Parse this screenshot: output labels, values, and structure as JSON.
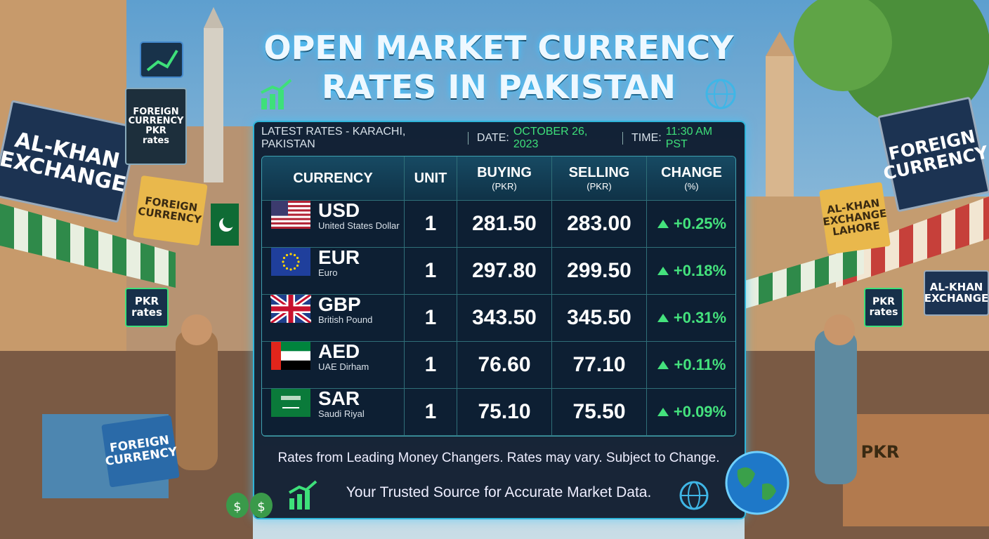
{
  "header": {
    "title": [
      "OPEN MARKET CURRENCY",
      "RATES IN PAKISTAN"
    ]
  },
  "info_bar": {
    "location": "LATEST RATES - KARACHI, PAKISTAN",
    "date_label": "DATE:",
    "date": "OCTOBER 26, 2023",
    "time_label": "TIME:",
    "time": "11:30 AM PST"
  },
  "table": {
    "columns": [
      {
        "label": "CURRENCY"
      },
      {
        "label": "UNIT"
      },
      {
        "label": "BUYING",
        "unit": "(PKR)"
      },
      {
        "label": "SELLING",
        "unit": "(PKR)"
      },
      {
        "label": "CHANGE",
        "unit": "(%)"
      }
    ],
    "rows": [
      {
        "code": "USD",
        "name": "United States Dollar",
        "unit": 1,
        "buying": "281.50",
        "selling": "283.00",
        "change": "+0.25%"
      },
      {
        "code": "EUR",
        "name": "Euro",
        "unit": 1,
        "buying": "297.80",
        "selling": "299.50",
        "change": "+0.18%"
      },
      {
        "code": "GBP",
        "name": "British Pound",
        "unit": 1,
        "buying": "343.50",
        "selling": "345.50",
        "change": "+0.31%"
      },
      {
        "code": "AED",
        "name": "UAE Dirham",
        "unit": 1,
        "buying": "76.60",
        "selling": "77.10",
        "change": "+0.11%"
      },
      {
        "code": "SAR",
        "name": "Saudi Riyal",
        "unit": 1,
        "buying": "75.10",
        "selling": "75.50",
        "change": "+0.09%"
      }
    ]
  },
  "footer": {
    "disclaimer": "Rates from Leading Money Changers. Rates may vary. Subject to Change.",
    "tagline": "Your Trusted Source for Accurate Market Data."
  },
  "scene": {
    "signs": [
      {
        "lines": [
          "AL-KHAN",
          "EXCHANGE"
        ]
      },
      {
        "lines": [
          "FOREIGN",
          "CURRENCY",
          "PKR",
          "rates"
        ]
      },
      {
        "lines": [
          "FOREIGN",
          "CURRENCY"
        ]
      },
      {
        "lines": [
          "PKR",
          "rates"
        ]
      },
      {
        "lines": [
          "FOREIGN",
          "CURRENCY"
        ]
      },
      {
        "lines": [
          "FOREIGN",
          "CURRENCY"
        ]
      },
      {
        "lines": [
          "AL-KHAN",
          "EXCHANGE",
          "LAHORE"
        ]
      },
      {
        "lines": [
          "AL-KHAN",
          "EXCHANGE"
        ]
      },
      {
        "lines": [
          "PKR",
          "rates"
        ]
      },
      {
        "lines": [
          "PKR"
        ]
      }
    ]
  }
}
